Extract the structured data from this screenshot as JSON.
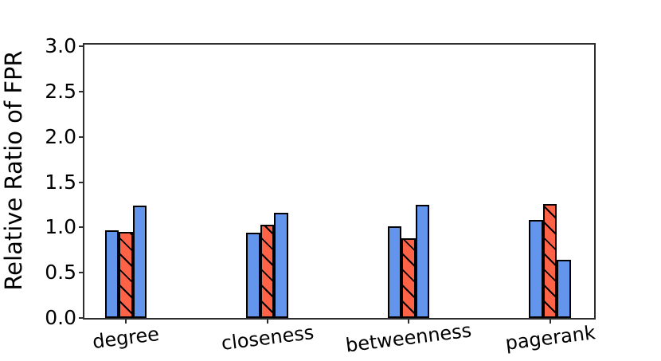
{
  "chart_data": {
    "type": "bar",
    "title": "",
    "xlabel": "",
    "ylabel": "Relative Ratio of FPR",
    "categories": [
      "degree",
      "closeness",
      "betweenness",
      "pagerank"
    ],
    "series": [
      {
        "name": "blue-left-bar",
        "color": "#6495ED",
        "edge_color": "#000000",
        "hatch": "none",
        "values": [
          0.97,
          0.94,
          1.01,
          1.08
        ]
      },
      {
        "name": "red-hatched-bar",
        "color": "#FF6347",
        "edge_color": "#000000",
        "hatch": "\\",
        "values": [
          0.95,
          1.03,
          0.88,
          1.26
        ]
      },
      {
        "name": "blue-right-bar",
        "color": "#6495ED",
        "edge_color": "#000000",
        "hatch": "none",
        "values": [
          1.24,
          1.16,
          1.25,
          0.64
        ]
      }
    ],
    "ylim": [
      0,
      3.02
    ],
    "yticks": [
      0.0,
      0.5,
      1.0,
      1.5,
      2.0,
      2.5,
      3.0
    ],
    "ytick_labels": [
      "0.0",
      "0.5",
      "1.0",
      "1.5",
      "2.0",
      "2.5",
      "3.0"
    ],
    "legend": "none",
    "grid": false,
    "spine_color": "#2e2e2e"
  }
}
